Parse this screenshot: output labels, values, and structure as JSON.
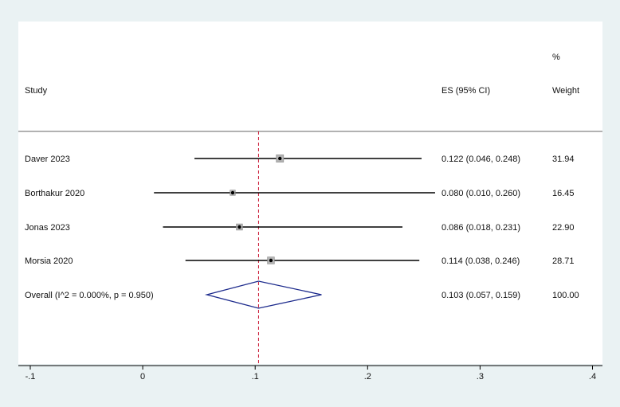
{
  "chart_data": {
    "type": "forest",
    "headers": {
      "study": "Study",
      "es": "ES (95% CI)",
      "weight_top": "%",
      "weight": "Weight"
    },
    "studies": [
      {
        "name": "Daver 2023",
        "es": 0.122,
        "ci_low": 0.046,
        "ci_high": 0.248,
        "es_label": "0.122 (0.046, 0.248)",
        "weight": 31.94,
        "weight_label": "31.94"
      },
      {
        "name": "Borthakur 2020",
        "es": 0.08,
        "ci_low": 0.01,
        "ci_high": 0.26,
        "es_label": "0.080 (0.010, 0.260)",
        "weight": 16.45,
        "weight_label": "16.45"
      },
      {
        "name": "Jonas 2023",
        "es": 0.086,
        "ci_low": 0.018,
        "ci_high": 0.231,
        "es_label": "0.086 (0.018, 0.231)",
        "weight": 22.9,
        "weight_label": "22.90"
      },
      {
        "name": "Morsia 2020",
        "es": 0.114,
        "ci_low": 0.038,
        "ci_high": 0.246,
        "es_label": "0.114 (0.038, 0.246)",
        "weight": 28.71,
        "weight_label": "28.71"
      }
    ],
    "overall": {
      "name": "Overall  (I^2 = 0.000%, p = 0.950)",
      "es": 0.103,
      "ci_low": 0.057,
      "ci_high": 0.159,
      "es_label": "0.103 (0.057, 0.159)",
      "weight_label": "100.00"
    },
    "x_axis": {
      "ticks": [
        -0.1,
        0,
        0.1,
        0.2,
        0.3,
        0.4
      ],
      "tick_labels": [
        "-.1",
        "0",
        ".1",
        ".2",
        ".3",
        ".4"
      ],
      "xlim": [
        -0.1,
        0.4
      ]
    },
    "reference_line": 0.103,
    "colors": {
      "ci_line": "#000000",
      "weight_box": "#b3b3b3",
      "diamond": "#1c2a8c",
      "reference": "#c8102e",
      "background": "#eaf2f3"
    }
  }
}
